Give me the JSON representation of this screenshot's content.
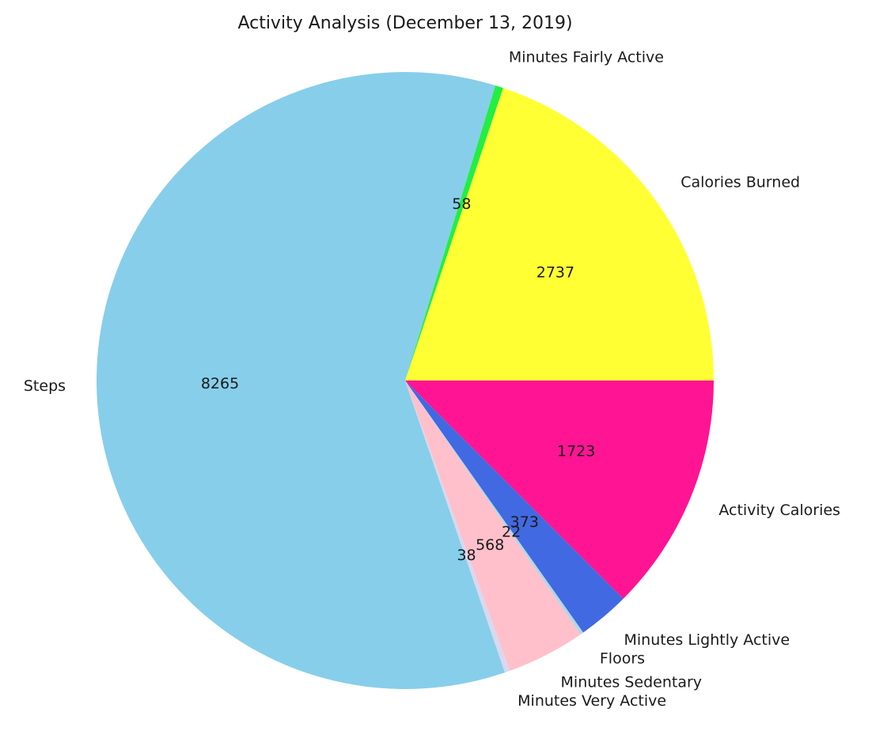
{
  "chart_data": {
    "type": "pie",
    "title": "Activity Analysis (December 13, 2019)",
    "start_angle_deg": 0,
    "direction": "counterclockwise",
    "legend": "none",
    "slices": [
      {
        "label": "Calories Burned",
        "value": 2737,
        "color": "#FFFF33"
      },
      {
        "label": "Minutes Fairly Active",
        "value": 58,
        "color": "#22EE44"
      },
      {
        "label": "Steps",
        "value": 8265,
        "color": "#87CEEB"
      },
      {
        "label": "Minutes Very Active",
        "value": 38,
        "color": "#D8D8EE"
      },
      {
        "label": "Minutes Sedentary",
        "value": 568,
        "color": "#FFC0CB"
      },
      {
        "label": "Floors",
        "value": 22,
        "color": "#ADD8E6"
      },
      {
        "label": "Minutes Lightly Active",
        "value": 373,
        "color": "#4169E1"
      },
      {
        "label": "Activity Calories",
        "value": 1723,
        "color": "#FF1493"
      }
    ]
  }
}
